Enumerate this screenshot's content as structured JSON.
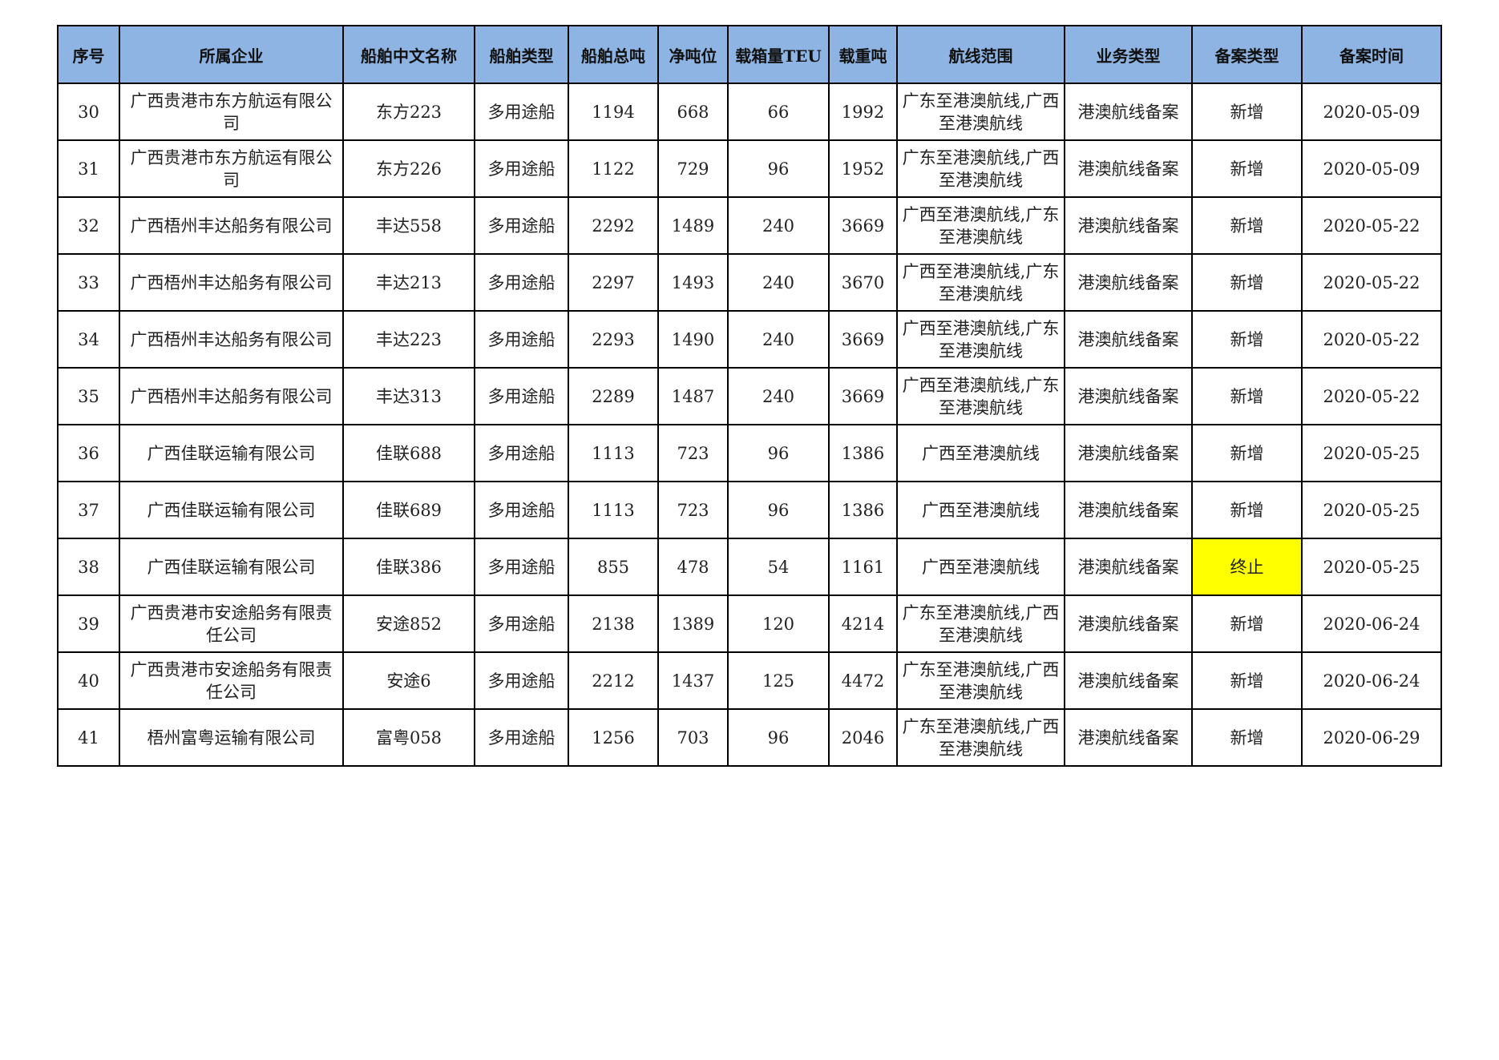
{
  "headers": [
    "序号",
    "所属企业",
    "船舶中文名称",
    "船舶类型",
    "船舶总吨",
    "净吨位",
    "载箱量TEU",
    "载重吨",
    "航线范围",
    "业务类型",
    "备案类型",
    "备案时间"
  ],
  "highlight_color": "#ffff00",
  "header_color": "#8db4e2",
  "rows": [
    [
      "30",
      "广西贵港市东方航运有限公司",
      "东方223",
      "多用途船",
      "1194",
      "668",
      "66",
      "1992",
      "广东至港澳航线,广西至港澳航线",
      "港澳航线备案",
      "新增",
      "2020-05-09"
    ],
    [
      "31",
      "广西贵港市东方航运有限公司",
      "东方226",
      "多用途船",
      "1122",
      "729",
      "96",
      "1952",
      "广东至港澳航线,广西至港澳航线",
      "港澳航线备案",
      "新增",
      "2020-05-09"
    ],
    [
      "32",
      "广西梧州丰达船务有限公司",
      "丰达558",
      "多用途船",
      "2292",
      "1489",
      "240",
      "3669",
      "广西至港澳航线,广东至港澳航线",
      "港澳航线备案",
      "新增",
      "2020-05-22"
    ],
    [
      "33",
      "广西梧州丰达船务有限公司",
      "丰达213",
      "多用途船",
      "2297",
      "1493",
      "240",
      "3670",
      "广西至港澳航线,广东至港澳航线",
      "港澳航线备案",
      "新增",
      "2020-05-22"
    ],
    [
      "34",
      "广西梧州丰达船务有限公司",
      "丰达223",
      "多用途船",
      "2293",
      "1490",
      "240",
      "3669",
      "广西至港澳航线,广东至港澳航线",
      "港澳航线备案",
      "新增",
      "2020-05-22"
    ],
    [
      "35",
      "广西梧州丰达船务有限公司",
      "丰达313",
      "多用途船",
      "2289",
      "1487",
      "240",
      "3669",
      "广西至港澳航线,广东至港澳航线",
      "港澳航线备案",
      "新增",
      "2020-05-22"
    ],
    [
      "36",
      "广西佳联运输有限公司",
      "佳联688",
      "多用途船",
      "1113",
      "723",
      "96",
      "1386",
      "广西至港澳航线",
      "港澳航线备案",
      "新增",
      "2020-05-25"
    ],
    [
      "37",
      "广西佳联运输有限公司",
      "佳联689",
      "多用途船",
      "1113",
      "723",
      "96",
      "1386",
      "广西至港澳航线",
      "港澳航线备案",
      "新增",
      "2020-05-25"
    ],
    [
      "38",
      "广西佳联运输有限公司",
      "佳联386",
      "多用途船",
      "855",
      "478",
      "54",
      "1161",
      "广西至港澳航线",
      "港澳航线备案",
      "终止",
      "2020-05-25"
    ],
    [
      "39",
      "广西贵港市安途船务有限责任公司",
      "安途852",
      "多用途船",
      "2138",
      "1389",
      "120",
      "4214",
      "广东至港澳航线,广西至港澳航线",
      "港澳航线备案",
      "新增",
      "2020-06-24"
    ],
    [
      "40",
      "广西贵港市安途船务有限责任公司",
      "安途6",
      "多用途船",
      "2212",
      "1437",
      "125",
      "4472",
      "广东至港澳航线,广西至港澳航线",
      "港澳航线备案",
      "新增",
      "2020-06-24"
    ],
    [
      "41",
      "梧州富粤运输有限公司",
      "富粤058",
      "多用途船",
      "1256",
      "703",
      "96",
      "2046",
      "广东至港澳航线,广西至港澳航线",
      "港澳航线备案",
      "新增",
      "2020-06-29"
    ]
  ],
  "highlighted_cells": [
    {
      "row": 8,
      "col": 10
    }
  ]
}
